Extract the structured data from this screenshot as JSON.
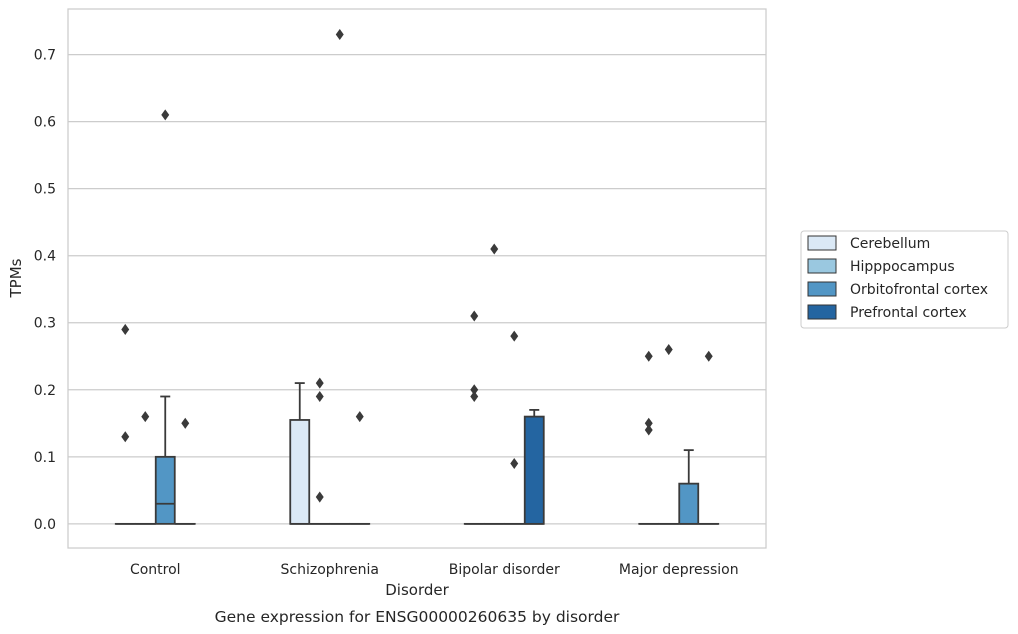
{
  "chart_data": {
    "type": "box",
    "title": "",
    "caption": "Gene expression for ENSG00000260635 by disorder",
    "xlabel": "Disorder",
    "ylabel": "TPMs",
    "ylim": [
      -0.036,
      0.768
    ],
    "yticks": [
      "0.0",
      "0.1",
      "0.2",
      "0.3",
      "0.4",
      "0.5",
      "0.6",
      "0.7"
    ],
    "grid": "horizontal",
    "legend_position": "right",
    "categories": [
      "Control",
      "Schizophrenia",
      "Bipolar disorder",
      "Major depression"
    ],
    "series": [
      {
        "name": "Cerebellum",
        "color": "#dbe9f6",
        "boxes": [
          {
            "q1": 0.0,
            "median": 0.0,
            "q3": 0.0,
            "whisker_low": 0.0,
            "whisker_high": 0.0,
            "outliers": [
              0.29,
              0.13
            ]
          },
          {
            "q1": 0.0,
            "median": 0.0,
            "q3": 0.155,
            "whisker_low": 0.0,
            "whisker_high": 0.21,
            "outliers": []
          },
          {
            "q1": 0.0,
            "median": 0.0,
            "q3": 0.0,
            "whisker_low": 0.0,
            "whisker_high": 0.0,
            "outliers": [
              0.31,
              0.2,
              0.19
            ]
          },
          {
            "q1": 0.0,
            "median": 0.0,
            "q3": 0.0,
            "whisker_low": 0.0,
            "whisker_high": 0.0,
            "outliers": [
              0.25,
              0.15,
              0.14
            ]
          }
        ]
      },
      {
        "name": "Hipppocampus",
        "color": "#9ac8e0",
        "boxes": [
          {
            "q1": 0.0,
            "median": 0.0,
            "q3": 0.0,
            "whisker_low": 0.0,
            "whisker_high": 0.0,
            "outliers": [
              0.16
            ]
          },
          {
            "q1": 0.0,
            "median": 0.0,
            "q3": 0.0,
            "whisker_low": 0.0,
            "whisker_high": 0.0,
            "outliers": [
              0.21,
              0.19,
              0.04
            ]
          },
          {
            "q1": 0.0,
            "median": 0.0,
            "q3": 0.0,
            "whisker_low": 0.0,
            "whisker_high": 0.0,
            "outliers": [
              0.41
            ]
          },
          {
            "q1": 0.0,
            "median": 0.0,
            "q3": 0.0,
            "whisker_low": 0.0,
            "whisker_high": 0.0,
            "outliers": [
              0.26
            ]
          }
        ]
      },
      {
        "name": "Orbitofrontal cortex",
        "color": "#5296c5",
        "boxes": [
          {
            "q1": 0.0,
            "median": 0.03,
            "q3": 0.1,
            "whisker_low": 0.0,
            "whisker_high": 0.19,
            "outliers": [
              0.61
            ]
          },
          {
            "q1": 0.0,
            "median": 0.0,
            "q3": 0.0,
            "whisker_low": 0.0,
            "whisker_high": 0.0,
            "outliers": [
              0.73
            ]
          },
          {
            "q1": 0.0,
            "median": 0.0,
            "q3": 0.0,
            "whisker_low": 0.0,
            "whisker_high": 0.0,
            "outliers": [
              0.28,
              0.09
            ]
          },
          {
            "q1": 0.0,
            "median": 0.0,
            "q3": 0.06,
            "whisker_low": 0.0,
            "whisker_high": 0.11,
            "outliers": []
          }
        ]
      },
      {
        "name": "Prefrontal cortex",
        "color": "#2465a1",
        "boxes": [
          {
            "q1": 0.0,
            "median": 0.0,
            "q3": 0.0,
            "whisker_low": 0.0,
            "whisker_high": 0.0,
            "outliers": [
              0.15
            ]
          },
          {
            "q1": 0.0,
            "median": 0.0,
            "q3": 0.0,
            "whisker_low": 0.0,
            "whisker_high": 0.0,
            "outliers": [
              0.16
            ]
          },
          {
            "q1": 0.0,
            "median": 0.0,
            "q3": 0.16,
            "whisker_low": 0.0,
            "whisker_high": 0.17,
            "outliers": []
          },
          {
            "q1": 0.0,
            "median": 0.0,
            "q3": 0.0,
            "whisker_low": 0.0,
            "whisker_high": 0.0,
            "outliers": [
              0.25
            ]
          }
        ]
      }
    ]
  }
}
